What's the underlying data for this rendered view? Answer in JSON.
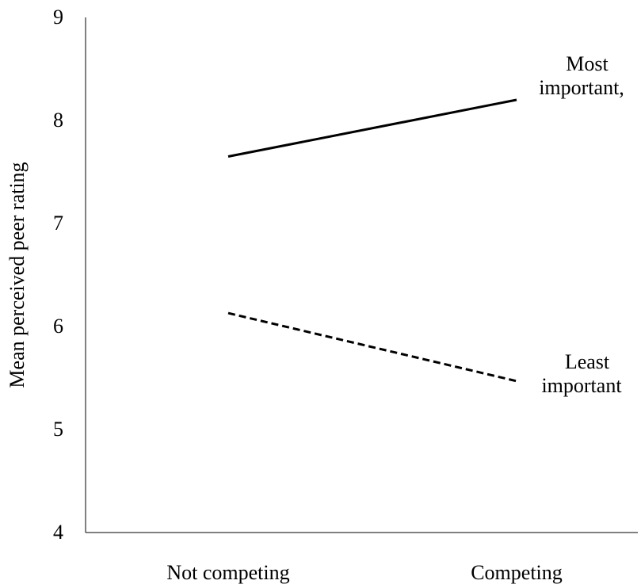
{
  "chart_data": {
    "type": "line",
    "title": "",
    "xlabel": "",
    "ylabel": "Mean perceived peer rating",
    "categories": [
      "Not competing",
      "Competing"
    ],
    "ylim": [
      4,
      9
    ],
    "yticks": [
      "4",
      "5",
      "6",
      "7",
      "8",
      "9"
    ],
    "grid": false,
    "series": [
      {
        "label_lines": [
          "Most",
          "important,"
        ],
        "values": [
          7.65,
          8.2
        ],
        "style": "solid",
        "color": "#000000"
      },
      {
        "label_lines": [
          "Least",
          "important"
        ],
        "values": [
          6.13,
          5.47
        ],
        "style": "dashed",
        "color": "#000000"
      }
    ]
  }
}
